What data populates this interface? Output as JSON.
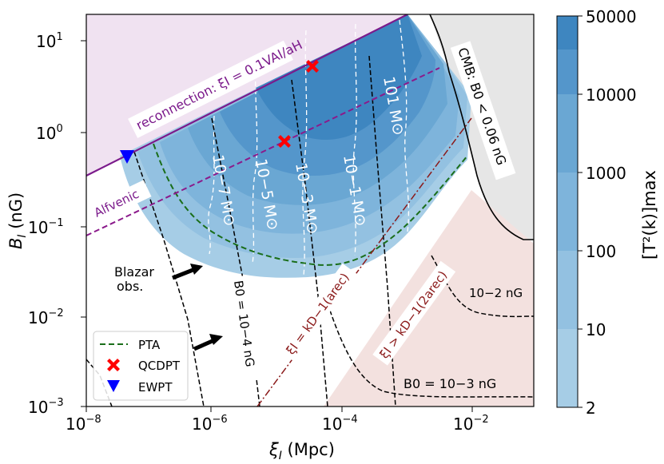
{
  "chart_data": {
    "type": "contour",
    "xscale": "log",
    "yscale": "log",
    "xlabel_main": "ξ",
    "xlabel_sub": "I",
    "xlabel_unit": " (Mpc)",
    "ylabel_main": "B",
    "ylabel_sub": "I",
    "ylabel_unit": " (nG)",
    "xlim": [
      1e-08,
      0.1
    ],
    "ylim": [
      0.001,
      20
    ],
    "x_ticks": [
      {
        "value": 1e-08,
        "base": "10",
        "exp": "−8"
      },
      {
        "value": 1e-06,
        "base": "10",
        "exp": "−6"
      },
      {
        "value": 0.0001,
        "base": "10",
        "exp": "−4"
      },
      {
        "value": 0.01,
        "base": "10",
        "exp": "−2"
      }
    ],
    "y_ticks": [
      {
        "value": 0.001,
        "base": "10",
        "exp": "−3"
      },
      {
        "value": 0.01,
        "base": "10",
        "exp": "−2"
      },
      {
        "value": 0.1,
        "base": "10",
        "exp": "−1"
      },
      {
        "value": 1,
        "base": "10",
        "exp": "0"
      },
      {
        "value": 10,
        "base": "10",
        "exp": "1"
      }
    ],
    "colorbar": {
      "label": "[T²(k)]max",
      "levels": [
        2,
        10,
        100,
        1000,
        10000,
        50000
      ],
      "tick_labels": [
        "2",
        "10",
        "100",
        "1000",
        "10000",
        "50000"
      ],
      "colors": [
        "#a6cde6",
        "#93c1e1",
        "#7eb4db",
        "#6aa7d3",
        "#5496cb",
        "#3e86c0"
      ]
    },
    "constraints": {
      "reconnection_label": "reconnection: ξI = 0.1VAI/aH",
      "alfvenic_label": "Alfvenic",
      "cmb_label": "CMB:  B0 < 0.06 nG",
      "blazar_label_1": "Blazar",
      "blazar_label_2": "obs.",
      "kd_rec_label": "ξI = kD−1(arec)",
      "kd_2rec_label": "ξI > kD−1(2arec)",
      "b0_1e4_label": "B0 = 10−4 nG",
      "b0_1e3_label": "B0 = 10−3 nG",
      "b0_1e2_label": "10−2 nG"
    },
    "mass_contours": [
      {
        "label": "10−7 M⊙"
      },
      {
        "label": "10−5 M⊙"
      },
      {
        "label": "10−3 M⊙"
      },
      {
        "label": "10−1 M⊙"
      },
      {
        "label": "101 M⊙"
      }
    ],
    "points": [
      {
        "name": "QCDPT",
        "x": 4e-05,
        "y": 5.5,
        "marker": "X",
        "color": "#ff0000"
      },
      {
        "name": "QCDPT",
        "x": 1.2e-05,
        "y": 0.8,
        "marker": "X",
        "color": "#ff0000"
      },
      {
        "name": "EWPT",
        "x": 4e-08,
        "y": 0.55,
        "marker": "triangle-down",
        "color": "#0000ff"
      }
    ],
    "legend": {
      "position": "lower-left",
      "items": [
        {
          "label": "PTA",
          "style": "dashed-line",
          "color": "#1a6e1a"
        },
        {
          "label": "QCDPT",
          "style": "x-marker",
          "color": "#ff0000"
        },
        {
          "label": "EWPT",
          "style": "triangle-marker",
          "color": "#0000ff"
        }
      ]
    }
  }
}
